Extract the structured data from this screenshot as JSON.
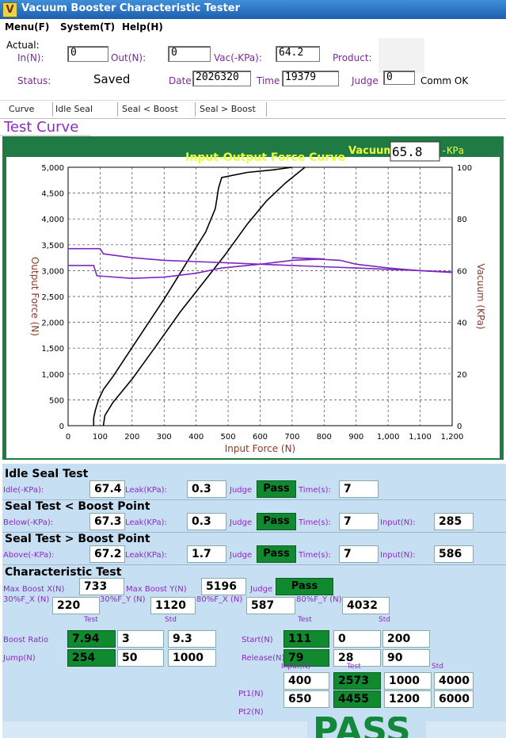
{
  "window": {
    "title": "Vacuum Booster Characteristic Tester"
  },
  "menu": [
    "Menu(F)",
    "System(T)",
    "Help(H)"
  ],
  "actual": {
    "label": "Actual:",
    "in_label": "In(N):",
    "in_value": "0",
    "out_label": "Out(N):",
    "out_value": "0",
    "vac_label": "Vac(-KPa):",
    "vac_value": "64.2",
    "product_label": "Product:",
    "status_label": "Status:",
    "status_value": "Saved",
    "date_label": "Date",
    "date_value": "2026320",
    "time_label": "Time",
    "time_value": "19379",
    "judge_label": "Judge",
    "judge_value": "0",
    "comm": "Comm OK"
  },
  "tabs": [
    "Curve",
    "Idle Seal",
    "Seal < Boost",
    "Seal > Boost"
  ],
  "test_curve_heading": "Test Curve",
  "chart_data": {
    "type": "line",
    "title": "Input-Output Force Curve",
    "vacuum_label": "Vacuum",
    "vacuum_value": "65.8",
    "vacuum_unit": "-KPa",
    "xlabel": "Input Force (N)",
    "ylabel": "Output Force (N)",
    "y2label": "Vacuum (KPa)",
    "xlim": [
      0,
      1200
    ],
    "ylim": [
      0,
      5000
    ],
    "y2lim": [
      0,
      100
    ],
    "x_ticks": [
      "0",
      "100",
      "200",
      "300",
      "400",
      "500",
      "600",
      "700",
      "800",
      "900",
      "1,000",
      "1,100",
      "1,200"
    ],
    "y_ticks": [
      "0",
      "500",
      "1,000",
      "1,500",
      "2,000",
      "2,500",
      "3,000",
      "3,500",
      "4,000",
      "4,500",
      "5,000"
    ],
    "y2_ticks": [
      "0",
      "20",
      "40",
      "60",
      "80",
      "100"
    ],
    "grid": true,
    "colors": {
      "force": "#000000",
      "vacuum": "#7b28c0",
      "plot_bg": "#ffffff",
      "frame": "#1f7a43",
      "title": "#e8ff3a"
    },
    "series": [
      {
        "axis": "y",
        "color": "#000000",
        "points": [
          [
            80,
            0
          ],
          [
            80,
            150
          ],
          [
            85,
            300
          ],
          [
            95,
            500
          ],
          [
            110,
            700
          ],
          [
            140,
            950
          ],
          [
            220,
            1700
          ],
          [
            300,
            2450
          ],
          [
            380,
            3250
          ],
          [
            430,
            3750
          ],
          [
            460,
            4200
          ],
          [
            470,
            4600
          ],
          [
            480,
            4800
          ],
          [
            560,
            4900
          ],
          [
            640,
            4950
          ],
          [
            700,
            5000
          ]
        ]
      },
      {
        "axis": "y",
        "color": "#000000",
        "points": [
          [
            110,
            0
          ],
          [
            115,
            200
          ],
          [
            140,
            450
          ],
          [
            200,
            900
          ],
          [
            270,
            1500
          ],
          [
            350,
            2200
          ],
          [
            420,
            2750
          ],
          [
            490,
            3300
          ],
          [
            560,
            3900
          ],
          [
            620,
            4350
          ],
          [
            680,
            4700
          ],
          [
            720,
            4900
          ],
          [
            740,
            5000
          ]
        ]
      },
      {
        "axis": "y2",
        "color": "#7b28c0",
        "points": [
          [
            0,
            68.5
          ],
          [
            100,
            68.5
          ],
          [
            110,
            66.5
          ],
          [
            200,
            65
          ],
          [
            300,
            64
          ],
          [
            400,
            63.5
          ],
          [
            500,
            63
          ],
          [
            600,
            62.5
          ],
          [
            700,
            62
          ],
          [
            800,
            61.5
          ],
          [
            900,
            61
          ],
          [
            1000,
            60.5
          ],
          [
            1100,
            60
          ],
          [
            1200,
            59.5
          ]
        ]
      },
      {
        "axis": "y2",
        "color": "#7b28c0",
        "points": [
          [
            0,
            62
          ],
          [
            80,
            62
          ],
          [
            90,
            58
          ],
          [
            200,
            57
          ],
          [
            300,
            57.5
          ],
          [
            400,
            59
          ],
          [
            480,
            61
          ],
          [
            600,
            62.5
          ],
          [
            700,
            64
          ],
          [
            800,
            64.5
          ],
          [
            700,
            65
          ],
          [
            850,
            64
          ],
          [
            900,
            62.5
          ],
          [
            1000,
            61
          ],
          [
            1100,
            60
          ],
          [
            1200,
            59.3
          ]
        ]
      }
    ]
  },
  "idle_seal": {
    "title": "Idle Seal Test",
    "label1": "Idle(-KPa):",
    "value1": "67.4",
    "leak_label": "Leak(KPa):",
    "leak_value": "0.3",
    "judge_label": "Judge",
    "judge_value": "Pass",
    "time_label": "Time(s):",
    "time_value": "7"
  },
  "seal_lt": {
    "title": "Seal Test < Boost Point",
    "label1": "Below(-KPa):",
    "value1": "67.3",
    "leak_label": "Leak(KPa):",
    "leak_value": "0.3",
    "judge_label": "Judge",
    "judge_value": "Pass",
    "time_label": "Time(s):",
    "time_value": "7",
    "input_label": "Input(N):",
    "input_value": "285"
  },
  "seal_gt": {
    "title": "Seal Test > Boost Point",
    "label1": "Above(-KPa):",
    "value1": "67.2",
    "leak_label": "Leak(KPa):",
    "leak_value": "1.7",
    "judge_label": "Judge",
    "judge_value": "Pass",
    "time_label": "Time(s):",
    "time_value": "7",
    "input_label": "Input(N):",
    "input_value": "586"
  },
  "characteristic": {
    "title": "Characteristic Test",
    "max_boost_x_label": "Max Boost X(N)",
    "max_boost_x": "733",
    "max_boost_y_label": "Max Boost Y(N)",
    "max_boost_y": "5196",
    "judge_label": "Judge",
    "judge_value": "Pass",
    "f30x_label": "30%F_X  (N)",
    "f30x": "220",
    "f30y_label": "30%F_Y  (N)",
    "f30y": "1120",
    "f80x_label": "80%F_X  (N)",
    "f80x": "587",
    "f80y_label": "80%F_Y  (N)",
    "f80y": "4032",
    "test_label": "Test",
    "std_label": "Std",
    "boost_ratio_label": "Boost Ratio",
    "boost_ratio_test": "7.94",
    "boost_ratio_std1": "3",
    "boost_ratio_std2": "9.3",
    "jump_label": "Jump(N)",
    "jump_test": "254",
    "jump_std1": "50",
    "jump_std2": "1000",
    "start_label": "Start(N)",
    "start_test": "111",
    "start_std1": "0",
    "start_std2": "200",
    "release_label": "Release(N)",
    "release_test": "79",
    "release_std1": "28",
    "release_std2": "90",
    "input_label": "Input(N)",
    "pt1_label": "Pt1(N)",
    "pt1_input": "400",
    "pt1_test": "2573",
    "pt1_std1": "1000",
    "pt1_std2": "4000",
    "pt2_label": "Pt2(N)",
    "pt2_input": "650",
    "pt2_test": "4455",
    "pt2_std1": "1200",
    "pt2_std2": "6000",
    "result": "PASS"
  }
}
